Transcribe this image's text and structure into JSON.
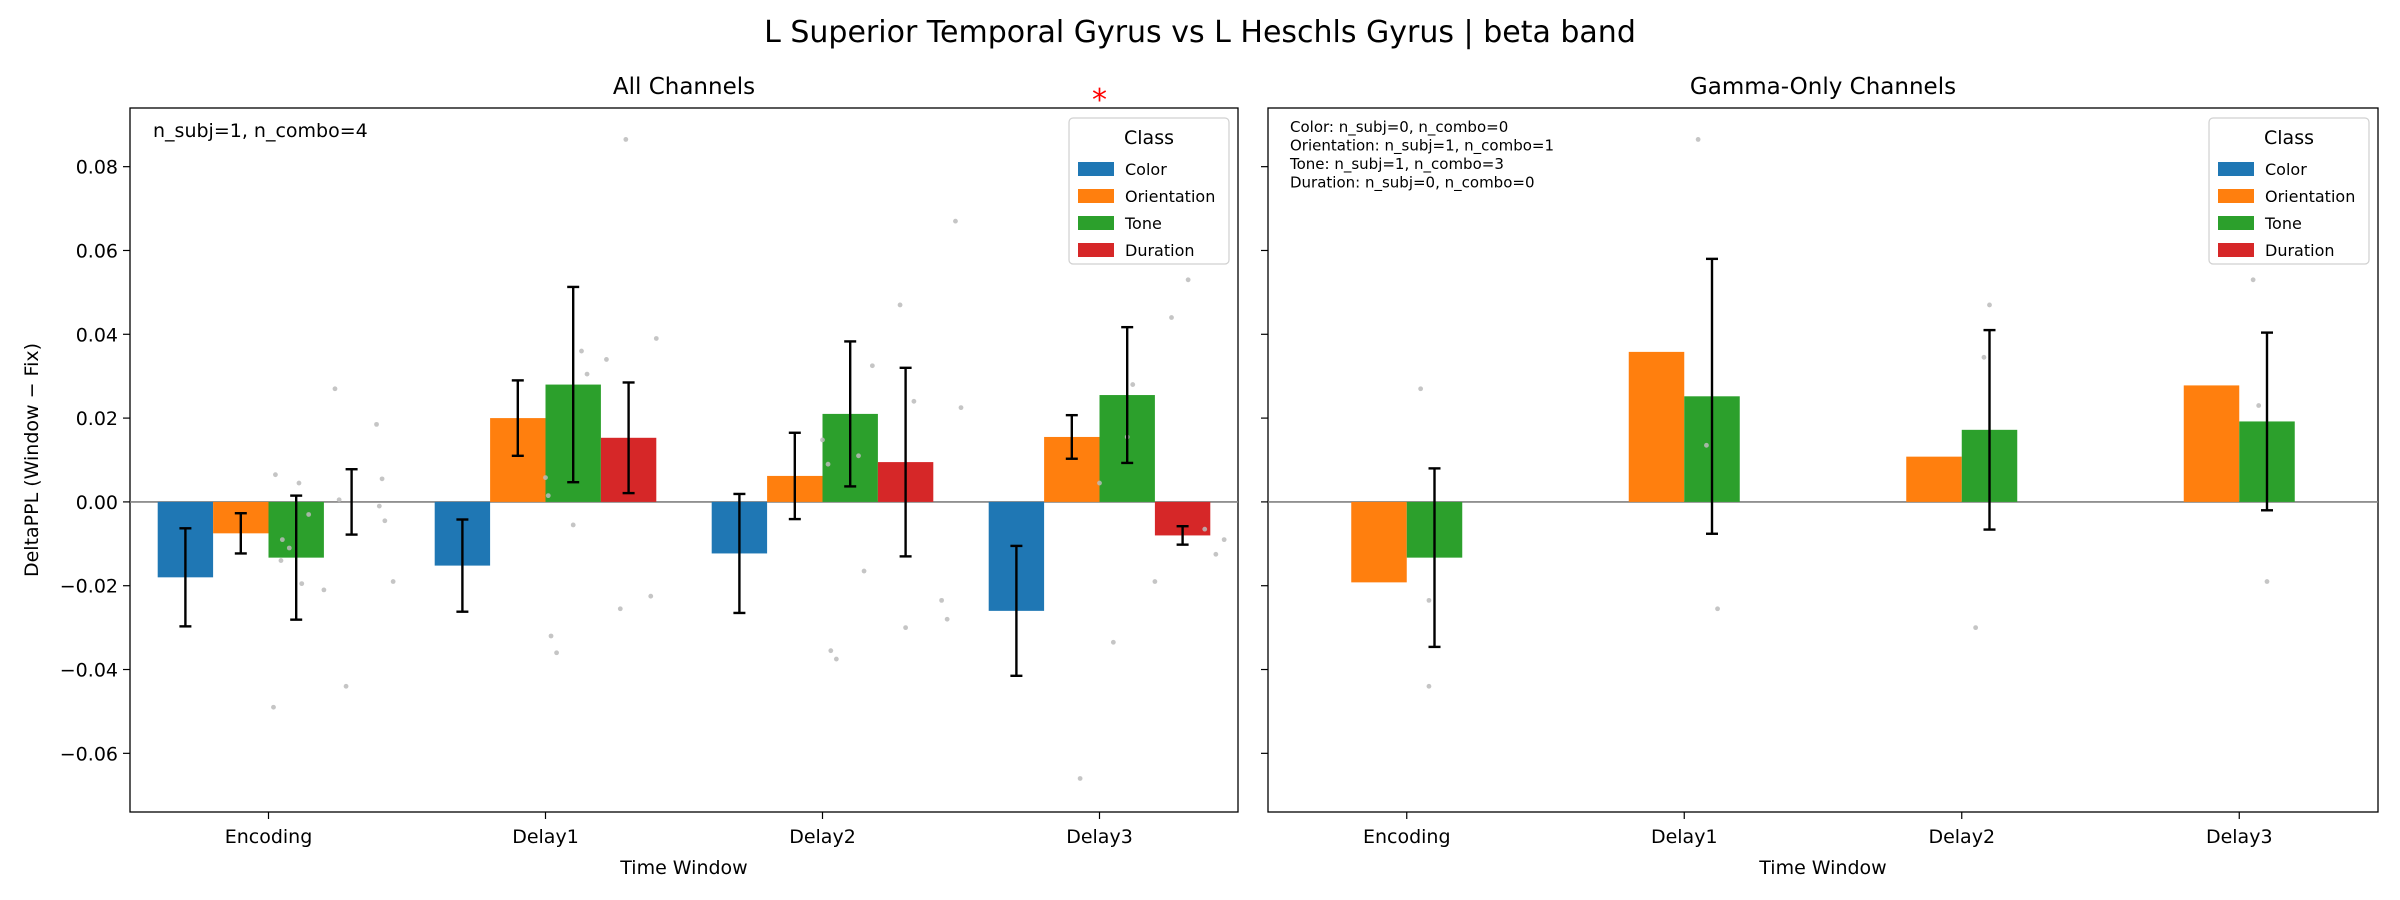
{
  "figure": {
    "suptitle": "L Superior Temporal Gyrus vs L Heschls Gyrus  |  beta band"
  },
  "colors": {
    "Color": "#1f77b4",
    "Orientation": "#ff7f0e",
    "Tone": "#2ca02c",
    "Duration": "#d62728",
    "significance": "#ff0000",
    "points": "#bbbbbb",
    "zero_line": "#808080"
  },
  "chart_data": [
    {
      "type": "bar",
      "title": "All Channels",
      "xlabel": "Time Window",
      "ylabel": "DeltaPPL (Window − Fix)",
      "ylim": [
        -0.074,
        0.094
      ],
      "yticks": [
        -0.06,
        -0.04,
        -0.02,
        0.0,
        0.02,
        0.04,
        0.06,
        0.08
      ],
      "ytick_labels": [
        "−0.06",
        "−0.04",
        "−0.02",
        "0.00",
        "0.02",
        "0.04",
        "0.06",
        "0.08"
      ],
      "categories": [
        "Encoding",
        "Delay1",
        "Delay2",
        "Delay3"
      ],
      "annotation": [
        "n_subj=1, n_combo=4"
      ],
      "legend": {
        "title": "Class",
        "position": "top-right",
        "entries": [
          "Color",
          "Orientation",
          "Tone",
          "Duration"
        ]
      },
      "significance": [
        {
          "category": "Delay3",
          "label": "*"
        }
      ],
      "series": [
        {
          "name": "Color",
          "values": [
            -0.018,
            -0.0152,
            -0.0123,
            -0.026
          ],
          "errors": [
            0.0117,
            0.011,
            0.0142,
            0.0155
          ]
        },
        {
          "name": "Orientation",
          "values": [
            -0.0075,
            0.02,
            0.0062,
            0.0155
          ],
          "errors": [
            0.0048,
            0.009,
            0.0103,
            0.0052
          ]
        },
        {
          "name": "Tone",
          "values": [
            -0.0133,
            0.028,
            0.021,
            0.0255
          ],
          "errors": [
            0.0148,
            0.0233,
            0.0173,
            0.0162
          ]
        },
        {
          "name": "Duration",
          "values": [
            0.0,
            0.0153,
            0.0095,
            -0.008
          ],
          "errors": [
            0.0078,
            0.0132,
            0.0225,
            0.0022
          ]
        }
      ],
      "points": [
        {
          "x": 0.025,
          "y": 0.0065
        },
        {
          "x": 0.018,
          "y": -0.049
        },
        {
          "x": 0.05,
          "y": -0.009
        },
        {
          "x": 0.075,
          "y": -0.011
        },
        {
          "x": 0.045,
          "y": -0.014
        },
        {
          "x": 0.11,
          "y": 0.0045
        },
        {
          "x": 0.12,
          "y": -0.0195
        },
        {
          "x": 0.145,
          "y": -0.003
        },
        {
          "x": 0.24,
          "y": 0.027
        },
        {
          "x": 0.255,
          "y": 0.0005
        },
        {
          "x": 0.28,
          "y": -0.044
        },
        {
          "x": 0.2,
          "y": -0.021
        },
        {
          "x": 0.39,
          "y": 0.0185
        },
        {
          "x": 0.41,
          "y": 0.0055
        },
        {
          "x": 0.42,
          "y": -0.0045
        },
        {
          "x": 0.45,
          "y": -0.019
        },
        {
          "x": 0.4,
          "y": -0.001
        },
        {
          "x": 1.0,
          "y": 0.0058
        },
        {
          "x": 1.01,
          "y": 0.0015
        },
        {
          "x": 1.02,
          "y": -0.032
        },
        {
          "x": 1.04,
          "y": -0.036
        },
        {
          "x": 1.13,
          "y": 0.036
        },
        {
          "x": 1.15,
          "y": 0.0305
        },
        {
          "x": 1.1,
          "y": -0.0055
        },
        {
          "x": 1.22,
          "y": 0.034
        },
        {
          "x": 1.27,
          "y": -0.0255
        },
        {
          "x": 1.29,
          "y": 0.0865
        },
        {
          "x": 1.38,
          "y": -0.0225
        },
        {
          "x": 1.4,
          "y": 0.039
        },
        {
          "x": 2.0,
          "y": 0.0148
        },
        {
          "x": 2.02,
          "y": 0.009
        },
        {
          "x": 2.03,
          "y": -0.0355
        },
        {
          "x": 2.05,
          "y": -0.0375
        },
        {
          "x": 2.13,
          "y": 0.011
        },
        {
          "x": 2.18,
          "y": 0.0325
        },
        {
          "x": 2.15,
          "y": -0.0165
        },
        {
          "x": 2.28,
          "y": 0.047
        },
        {
          "x": 2.3,
          "y": -0.03
        },
        {
          "x": 2.33,
          "y": 0.024
        },
        {
          "x": 2.43,
          "y": -0.0235
        },
        {
          "x": 2.45,
          "y": -0.028
        },
        {
          "x": 2.48,
          "y": 0.067
        },
        {
          "x": 2.5,
          "y": 0.0225
        },
        {
          "x": 3.0,
          "y": 0.0045
        },
        {
          "x": 2.93,
          "y": -0.066
        },
        {
          "x": 3.05,
          "y": -0.0335
        },
        {
          "x": 3.1,
          "y": 0.0155
        },
        {
          "x": 3.12,
          "y": 0.028
        },
        {
          "x": 3.2,
          "y": -0.019
        },
        {
          "x": 3.26,
          "y": 0.044
        },
        {
          "x": 3.32,
          "y": 0.053
        },
        {
          "x": 3.42,
          "y": -0.0125
        },
        {
          "x": 3.45,
          "y": -0.009
        },
        {
          "x": 3.38,
          "y": -0.0065
        }
      ]
    },
    {
      "type": "bar",
      "title": "Gamma-Only Channels",
      "xlabel": "Time Window",
      "ylabel": "",
      "ylim": [
        -0.074,
        0.094
      ],
      "yticks": [
        -0.06,
        -0.04,
        -0.02,
        0.0,
        0.02,
        0.04,
        0.06,
        0.08
      ],
      "ytick_labels": [
        "",
        "",
        "",
        "",
        "",
        "",
        "",
        ""
      ],
      "categories": [
        "Encoding",
        "Delay1",
        "Delay2",
        "Delay3"
      ],
      "annotation": [
        "Color: n_subj=0, n_combo=0",
        "Orientation: n_subj=1, n_combo=1",
        "Tone: n_subj=1, n_combo=3",
        "Duration: n_subj=0, n_combo=0"
      ],
      "legend": {
        "title": "Class",
        "position": "top-right",
        "entries": [
          "Color",
          "Orientation",
          "Tone",
          "Duration"
        ]
      },
      "significance": [],
      "series": [
        {
          "name": "Color",
          "values": [
            null,
            null,
            null,
            null
          ],
          "errors": [
            null,
            null,
            null,
            null
          ]
        },
        {
          "name": "Orientation",
          "values": [
            -0.0192,
            0.0358,
            0.0108,
            0.0278
          ],
          "errors": [
            null,
            null,
            null,
            null
          ]
        },
        {
          "name": "Tone",
          "values": [
            -0.0133,
            0.0252,
            0.0172,
            0.0192
          ],
          "errors": [
            0.0213,
            0.0328,
            0.0238,
            0.0212
          ]
        },
        {
          "name": "Duration",
          "values": [
            null,
            null,
            null,
            null
          ],
          "errors": [
            null,
            null,
            null,
            null
          ]
        }
      ],
      "points": [
        {
          "x": 0.05,
          "y": 0.027
        },
        {
          "x": 0.08,
          "y": -0.0235
        },
        {
          "x": 0.08,
          "y": -0.044
        },
        {
          "x": 1.05,
          "y": 0.0865
        },
        {
          "x": 1.12,
          "y": -0.0255
        },
        {
          "x": 1.08,
          "y": 0.0135
        },
        {
          "x": 2.05,
          "y": -0.03
        },
        {
          "x": 2.1,
          "y": 0.047
        },
        {
          "x": 2.08,
          "y": 0.0345
        },
        {
          "x": 3.05,
          "y": 0.053
        },
        {
          "x": 3.1,
          "y": -0.019
        },
        {
          "x": 3.07,
          "y": 0.023
        }
      ]
    }
  ]
}
